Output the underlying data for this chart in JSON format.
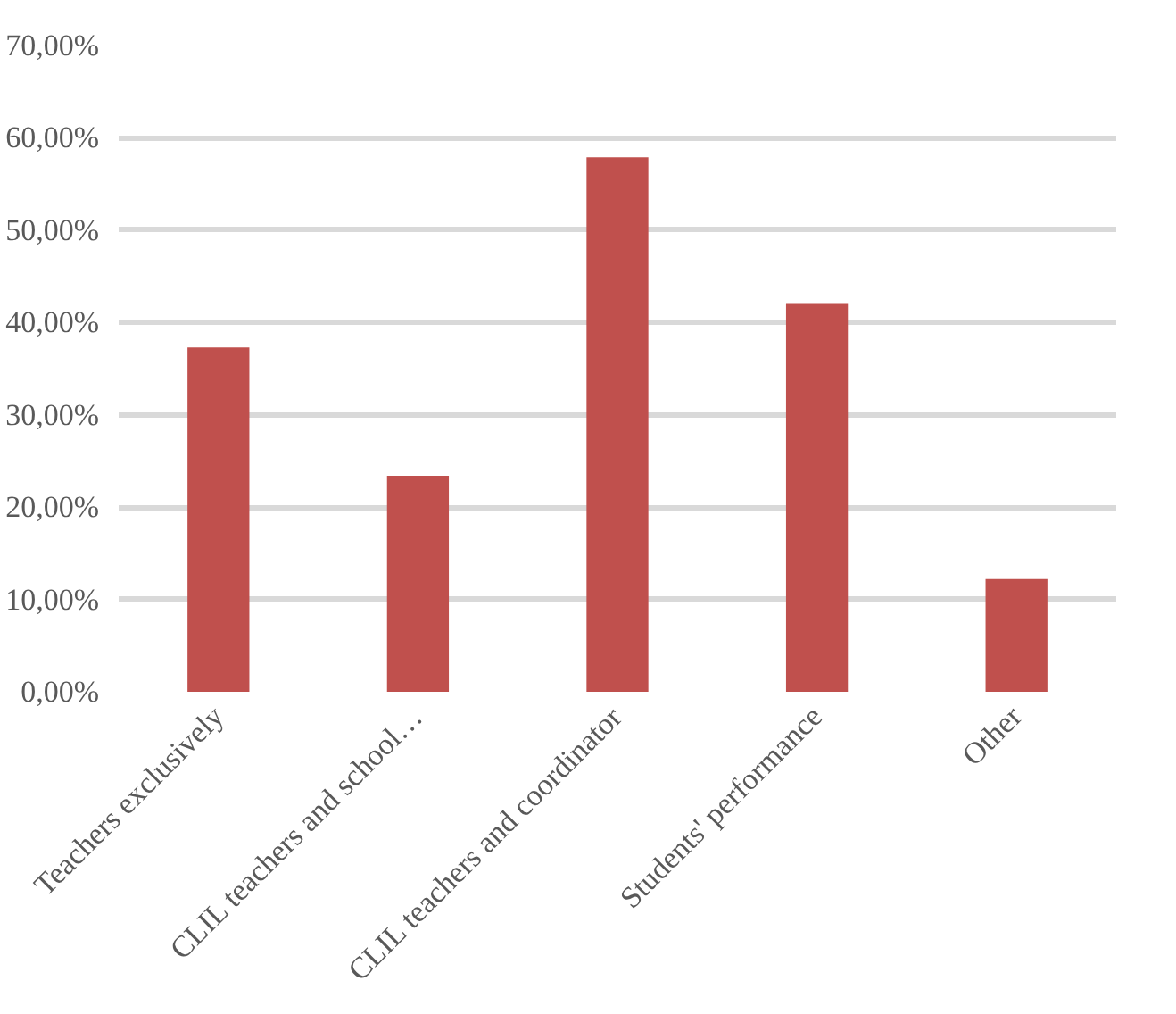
{
  "chart_data": {
    "type": "bar",
    "categories": [
      "Teachers exclusively",
      "CLIL teachers and school…",
      "CLIL teachers and coordinator",
      "Students' performance",
      "Other"
    ],
    "values": [
      37.3,
      23.4,
      57.9,
      42.0,
      12.2
    ],
    "color": "#c0504d",
    "ylim": [
      0,
      70
    ],
    "yticks": [
      {
        "value": 0,
        "label": "0,00%"
      },
      {
        "value": 10,
        "label": "10,00%"
      },
      {
        "value": 20,
        "label": "20,00%"
      },
      {
        "value": 30,
        "label": "30,00%"
      },
      {
        "value": 40,
        "label": "40,00%"
      },
      {
        "value": 50,
        "label": "50,00%"
      },
      {
        "value": 60,
        "label": "60,00%"
      },
      {
        "value": 70,
        "label": "70,00%"
      }
    ],
    "grid": "y"
  }
}
